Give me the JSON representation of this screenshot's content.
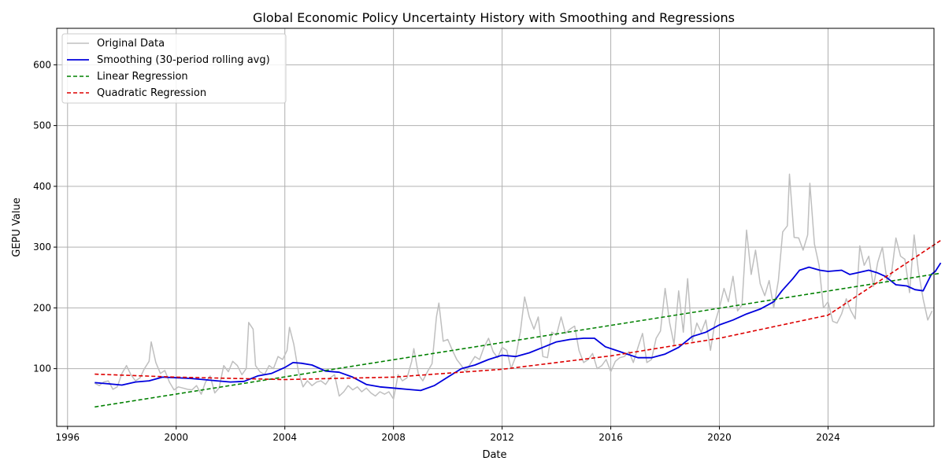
{
  "chart_data": {
    "type": "line",
    "title": "Global Economic Policy Uncertainty History with Smoothing and Regressions",
    "xlabel": "Date",
    "ylabel": "GEPU Value",
    "xlim": [
      1995.6,
      2027.9
    ],
    "ylim": [
      5,
      660
    ],
    "x_ticks": [
      1996,
      2000,
      2004,
      2008,
      2012,
      2016,
      2020,
      2024
    ],
    "y_ticks": [
      100,
      200,
      300,
      400,
      500,
      600
    ],
    "grid": true,
    "legend_position": "top-left",
    "series": [
      {
        "name": "Original Data",
        "color": "#bfbfbf",
        "style": "solid",
        "points": [
          [
            1997.0,
            76
          ],
          [
            1997.17,
            72
          ],
          [
            1997.33,
            78
          ],
          [
            1997.5,
            80
          ],
          [
            1997.67,
            66
          ],
          [
            1997.83,
            70
          ],
          [
            1998.0,
            92
          ],
          [
            1998.17,
            105
          ],
          [
            1998.33,
            90
          ],
          [
            1998.5,
            80
          ],
          [
            1998.67,
            85
          ],
          [
            1998.83,
            100
          ],
          [
            1999.0,
            112
          ],
          [
            1999.08,
            144
          ],
          [
            1999.25,
            110
          ],
          [
            1999.42,
            92
          ],
          [
            1999.58,
            97
          ],
          [
            1999.75,
            78
          ],
          [
            1999.92,
            65
          ],
          [
            2000.08,
            70
          ],
          [
            2000.25,
            68
          ],
          [
            2000.42,
            66
          ],
          [
            2000.58,
            65
          ],
          [
            2000.75,
            72
          ],
          [
            2000.92,
            58
          ],
          [
            2001.08,
            78
          ],
          [
            2001.25,
            88
          ],
          [
            2001.42,
            60
          ],
          [
            2001.58,
            68
          ],
          [
            2001.75,
            105
          ],
          [
            2001.92,
            95
          ],
          [
            2002.08,
            112
          ],
          [
            2002.25,
            105
          ],
          [
            2002.42,
            90
          ],
          [
            2002.58,
            100
          ],
          [
            2002.67,
            176
          ],
          [
            2002.83,
            165
          ],
          [
            2002.92,
            105
          ],
          [
            2003.08,
            95
          ],
          [
            2003.25,
            90
          ],
          [
            2003.42,
            105
          ],
          [
            2003.58,
            100
          ],
          [
            2003.75,
            120
          ],
          [
            2003.92,
            115
          ],
          [
            2004.08,
            130
          ],
          [
            2004.17,
            168
          ],
          [
            2004.33,
            140
          ],
          [
            2004.5,
            95
          ],
          [
            2004.67,
            70
          ],
          [
            2004.83,
            80
          ],
          [
            2005.0,
            72
          ],
          [
            2005.17,
            78
          ],
          [
            2005.33,
            80
          ],
          [
            2005.5,
            74
          ],
          [
            2005.67,
            85
          ],
          [
            2005.83,
            90
          ],
          [
            2006.0,
            55
          ],
          [
            2006.17,
            62
          ],
          [
            2006.33,
            72
          ],
          [
            2006.5,
            65
          ],
          [
            2006.67,
            70
          ],
          [
            2006.83,
            62
          ],
          [
            2007.0,
            68
          ],
          [
            2007.17,
            60
          ],
          [
            2007.33,
            55
          ],
          [
            2007.5,
            62
          ],
          [
            2007.67,
            58
          ],
          [
            2007.83,
            62
          ],
          [
            2008.0,
            50
          ],
          [
            2008.17,
            90
          ],
          [
            2008.33,
            80
          ],
          [
            2008.5,
            85
          ],
          [
            2008.67,
            112
          ],
          [
            2008.75,
            133
          ],
          [
            2008.92,
            90
          ],
          [
            2009.08,
            80
          ],
          [
            2009.25,
            95
          ],
          [
            2009.42,
            108
          ],
          [
            2009.58,
            185
          ],
          [
            2009.67,
            208
          ],
          [
            2009.83,
            145
          ],
          [
            2010.0,
            148
          ],
          [
            2010.17,
            130
          ],
          [
            2010.33,
            115
          ],
          [
            2010.5,
            105
          ],
          [
            2010.67,
            95
          ],
          [
            2010.83,
            108
          ],
          [
            2011.0,
            120
          ],
          [
            2011.17,
            115
          ],
          [
            2011.33,
            135
          ],
          [
            2011.5,
            150
          ],
          [
            2011.67,
            128
          ],
          [
            2011.83,
            118
          ],
          [
            2012.0,
            135
          ],
          [
            2012.17,
            130
          ],
          [
            2012.33,
            100
          ],
          [
            2012.5,
            120
          ],
          [
            2012.67,
            160
          ],
          [
            2012.83,
            218
          ],
          [
            2013.0,
            185
          ],
          [
            2013.17,
            165
          ],
          [
            2013.33,
            185
          ],
          [
            2013.5,
            120
          ],
          [
            2013.67,
            118
          ],
          [
            2013.83,
            160
          ],
          [
            2014.0,
            155
          ],
          [
            2014.17,
            185
          ],
          [
            2014.33,
            158
          ],
          [
            2014.5,
            165
          ],
          [
            2014.67,
            170
          ],
          [
            2014.83,
            130
          ],
          [
            2015.0,
            110
          ],
          [
            2015.17,
            115
          ],
          [
            2015.33,
            125
          ],
          [
            2015.5,
            100
          ],
          [
            2015.67,
            105
          ],
          [
            2015.83,
            115
          ],
          [
            2016.0,
            95
          ],
          [
            2016.17,
            112
          ],
          [
            2016.33,
            118
          ],
          [
            2016.5,
            120
          ],
          [
            2016.67,
            128
          ],
          [
            2016.83,
            110
          ],
          [
            2017.0,
            135
          ],
          [
            2017.17,
            158
          ],
          [
            2017.33,
            110
          ],
          [
            2017.5,
            115
          ],
          [
            2017.67,
            150
          ],
          [
            2017.83,
            162
          ],
          [
            2018.0,
            232
          ],
          [
            2018.17,
            175
          ],
          [
            2018.33,
            140
          ],
          [
            2018.5,
            228
          ],
          [
            2018.67,
            160
          ],
          [
            2018.83,
            248
          ],
          [
            2019.0,
            145
          ],
          [
            2019.17,
            175
          ],
          [
            2019.33,
            160
          ],
          [
            2019.5,
            180
          ],
          [
            2019.67,
            130
          ],
          [
            2019.83,
            175
          ],
          [
            2020.0,
            200
          ],
          [
            2020.17,
            232
          ],
          [
            2020.33,
            210
          ],
          [
            2020.5,
            252
          ],
          [
            2020.67,
            195
          ],
          [
            2020.83,
            205
          ],
          [
            2021.0,
            328
          ],
          [
            2021.17,
            255
          ],
          [
            2021.33,
            295
          ],
          [
            2021.5,
            240
          ],
          [
            2021.67,
            220
          ],
          [
            2021.83,
            245
          ],
          [
            2022.0,
            200
          ],
          [
            2022.17,
            245
          ],
          [
            2022.33,
            325
          ],
          [
            2022.5,
            335
          ],
          [
            2022.58,
            420
          ],
          [
            2022.75,
            316
          ],
          [
            2022.92,
            315
          ],
          [
            2023.08,
            295
          ],
          [
            2023.25,
            320
          ],
          [
            2023.33,
            405
          ],
          [
            2023.5,
            305
          ],
          [
            2023.67,
            270
          ],
          [
            2023.83,
            200
          ],
          [
            2024.0,
            210
          ],
          [
            2024.17,
            178
          ],
          [
            2024.33,
            175
          ],
          [
            2024.5,
            190
          ],
          [
            2024.67,
            215
          ],
          [
            2024.83,
            196
          ],
          [
            2025.0,
            182
          ],
          [
            2025.17,
            302
          ],
          [
            2025.33,
            270
          ],
          [
            2025.5,
            285
          ],
          [
            2025.67,
            235
          ],
          [
            2025.83,
            275
          ],
          [
            2026.0,
            300
          ],
          [
            2026.17,
            245
          ],
          [
            2026.33,
            255
          ],
          [
            2026.5,
            315
          ],
          [
            2026.67,
            285
          ],
          [
            2026.83,
            280
          ],
          [
            2027.0,
            225
          ],
          [
            2027.17,
            320
          ],
          [
            2027.33,
            260
          ],
          [
            2027.5,
            215
          ],
          [
            2027.67,
            180
          ],
          [
            2027.83,
            195
          ]
        ]
      },
      {
        "name": "Smoothing (30-period rolling avg)",
        "color": "#0000dd",
        "style": "solid",
        "points": [
          [
            1997.0,
            77
          ],
          [
            1997.5,
            75
          ],
          [
            1998.0,
            73
          ],
          [
            1998.5,
            78
          ],
          [
            1999.0,
            80
          ],
          [
            1999.5,
            86
          ],
          [
            2000.0,
            85
          ],
          [
            2000.5,
            84
          ],
          [
            2001.0,
            82
          ],
          [
            2001.5,
            80
          ],
          [
            2002.0,
            78
          ],
          [
            2002.5,
            79
          ],
          [
            2003.0,
            88
          ],
          [
            2003.5,
            92
          ],
          [
            2004.0,
            102
          ],
          [
            2004.3,
            110
          ],
          [
            2004.6,
            109
          ],
          [
            2005.0,
            106
          ],
          [
            2005.5,
            96
          ],
          [
            2006.0,
            94
          ],
          [
            2006.5,
            86
          ],
          [
            2007.0,
            74
          ],
          [
            2007.5,
            70
          ],
          [
            2008.0,
            68
          ],
          [
            2008.5,
            66
          ],
          [
            2009.0,
            64
          ],
          [
            2009.5,
            72
          ],
          [
            2010.0,
            86
          ],
          [
            2010.5,
            100
          ],
          [
            2011.0,
            106
          ],
          [
            2011.5,
            115
          ],
          [
            2012.0,
            122
          ],
          [
            2012.5,
            120
          ],
          [
            2013.0,
            126
          ],
          [
            2013.5,
            135
          ],
          [
            2014.0,
            144
          ],
          [
            2014.5,
            148
          ],
          [
            2015.0,
            150
          ],
          [
            2015.4,
            150
          ],
          [
            2015.8,
            136
          ],
          [
            2016.2,
            130
          ],
          [
            2016.6,
            124
          ],
          [
            2017.0,
            118
          ],
          [
            2017.5,
            118
          ],
          [
            2018.0,
            124
          ],
          [
            2018.5,
            135
          ],
          [
            2019.0,
            153
          ],
          [
            2019.5,
            160
          ],
          [
            2020.0,
            172
          ],
          [
            2020.5,
            180
          ],
          [
            2021.0,
            190
          ],
          [
            2021.5,
            198
          ],
          [
            2022.0,
            210
          ],
          [
            2022.3,
            228
          ],
          [
            2022.7,
            248
          ],
          [
            2022.95,
            262
          ],
          [
            2023.3,
            267
          ],
          [
            2023.7,
            262
          ],
          [
            2024.0,
            260
          ],
          [
            2024.5,
            262
          ],
          [
            2024.8,
            255
          ],
          [
            2025.1,
            258
          ],
          [
            2025.5,
            262
          ],
          [
            2025.8,
            258
          ],
          [
            2026.1,
            252
          ],
          [
            2026.5,
            238
          ],
          [
            2026.9,
            236
          ],
          [
            2027.2,
            230
          ],
          [
            2027.5,
            228
          ],
          [
            2027.8,
            255
          ],
          [
            2027.95,
            260
          ],
          [
            2028.15,
            274
          ]
        ]
      },
      {
        "name": "Linear Regression",
        "color": "#008000",
        "style": "dashed",
        "points": [
          [
            1997.0,
            37
          ],
          [
            2028.15,
            257
          ]
        ]
      },
      {
        "name": "Quadratic Regression",
        "color": "#dd0000",
        "style": "dashed",
        "points": [
          [
            1997.0,
            91
          ],
          [
            2000.0,
            86
          ],
          [
            2004.0,
            82
          ],
          [
            2008.0,
            86
          ],
          [
            2012.0,
            99
          ],
          [
            2016.0,
            121
          ],
          [
            2020.0,
            150
          ],
          [
            2024.0,
            188
          ],
          [
            2028.15,
            311
          ]
        ]
      }
    ]
  }
}
